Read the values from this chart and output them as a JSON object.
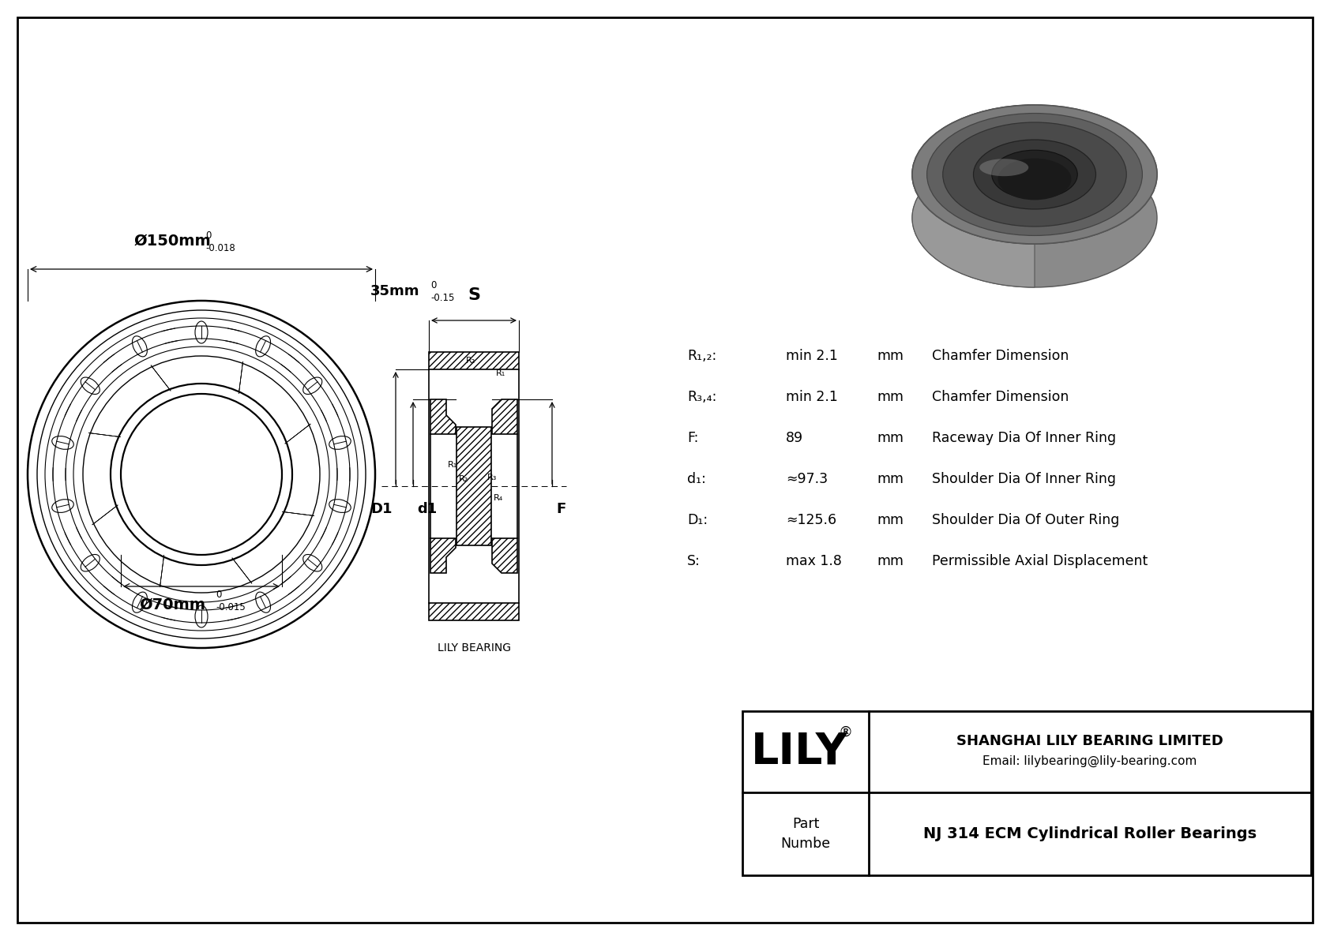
{
  "bg_color": "#ffffff",
  "line_color": "#000000",
  "specs": [
    {
      "label": "R₁,₂:",
      "value": "min 2.1",
      "unit": "mm",
      "desc": "Chamfer Dimension"
    },
    {
      "label": "R₃,₄:",
      "value": "min 2.1",
      "unit": "mm",
      "desc": "Chamfer Dimension"
    },
    {
      "label": "F:",
      "value": "89",
      "unit": "mm",
      "desc": "Raceway Dia Of Inner Ring"
    },
    {
      "label": "d₁:",
      "value": "≈97.3",
      "unit": "mm",
      "desc": "Shoulder Dia Of Inner Ring"
    },
    {
      "label": "D₁:",
      "value": "≈125.6",
      "unit": "mm",
      "desc": "Shoulder Dia Of Outer Ring"
    },
    {
      "label": "S:",
      "value": "max 1.8",
      "unit": "mm",
      "desc": "Permissible Axial Displacement"
    }
  ],
  "dim_outer": "Ø150mm",
  "dim_outer_tol_top": "0",
  "dim_outer_tol_bot": "-0.018",
  "dim_inner": "Ø70mm",
  "dim_inner_tol_top": "0",
  "dim_inner_tol_bot": "-0.015",
  "dim_width": "35mm",
  "dim_width_tol_top": "0",
  "dim_width_tol_bot": "-0.15",
  "label_S": "S",
  "label_D1": "D1",
  "label_d1": "d1",
  "label_F": "F",
  "label_R1": "R₁",
  "label_R2": "R₂",
  "label_R3": "R₃",
  "label_R4": "R₄",
  "company": "SHANGHAI LILY BEARING LIMITED",
  "email": "Email: lilybearing@lily-bearing.com",
  "part_label": "Part\nNumbe",
  "part_number": "NJ 314 ECM Cylindrical Roller Bearings",
  "lily_text": "LILY",
  "lily_reg": "®",
  "watermark": "LILY BEARING",
  "border_color": "#000000"
}
